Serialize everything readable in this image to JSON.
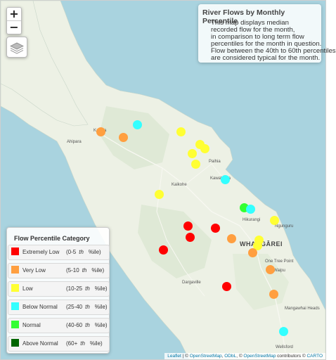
{
  "map": {
    "zoom_in_label": "+",
    "zoom_out_label": "−",
    "layers_icon": "layers-icon",
    "land_color": "#edf1e5",
    "sea_color": "#a9d3df"
  },
  "info_box": {
    "title": "River Flows by Monthly Percentile",
    "lines": [
      "This map displays median",
      "recorded flow for the month,",
      "in comparison to long term flow",
      "percentiles for the month in question.",
      "Flow between the 40th to 60th percentiles",
      "are considered typical for the month."
    ]
  },
  "legend": {
    "title": "Flow Percentile Category",
    "th": "th",
    "ile": "%ile)",
    "items": [
      {
        "label": "Extremely Low",
        "range": "(0-5",
        "color": "#ff0000"
      },
      {
        "label": "Very Low",
        "range": "(5-10",
        "color": "#ff9f40"
      },
      {
        "label": "Low",
        "range": "(10-25",
        "color": "#ffff33"
      },
      {
        "label": "Below Normal",
        "range": "(25-40",
        "color": "#33ffff"
      },
      {
        "label": "Normal",
        "range": "(40-60",
        "color": "#33ff33"
      },
      {
        "label": "Above Normal",
        "range": "(60+",
        "color": "#006600"
      }
    ]
  },
  "places": [
    "Kaitaia",
    "Ahipara",
    "Paihia",
    "Kawakawa",
    "Kaikohe",
    "Hikurangi",
    "Ngunguru",
    "WHANGĀREI",
    "One Tree Point",
    "Waipu",
    "Dargaville",
    "Mangawhai Heads",
    "Wellsford"
  ],
  "sites": [
    {
      "category": "Very Low",
      "color": "#ff9f40"
    },
    {
      "category": "Below Normal",
      "color": "#33ffff"
    },
    {
      "category": "Very Low",
      "color": "#ff9f40"
    },
    {
      "category": "Low",
      "color": "#ffff33"
    },
    {
      "category": "Low",
      "color": "#ffff33"
    },
    {
      "category": "Low",
      "color": "#ffff33"
    },
    {
      "category": "Low",
      "color": "#ffff33"
    },
    {
      "category": "Low",
      "color": "#ffff33"
    },
    {
      "category": "Below Normal",
      "color": "#33ffff"
    },
    {
      "category": "Low",
      "color": "#ffff33"
    },
    {
      "category": "Normal",
      "color": "#33ff33"
    },
    {
      "category": "Below Normal",
      "color": "#33ffff"
    },
    {
      "category": "Low",
      "color": "#ffff33"
    },
    {
      "category": "Extremely Low",
      "color": "#ff0000"
    },
    {
      "category": "Extremely Low",
      "color": "#ff0000"
    },
    {
      "category": "Extremely Low",
      "color": "#ff0000"
    },
    {
      "category": "Very Low",
      "color": "#ff9f40"
    },
    {
      "category": "Low",
      "color": "#ffff33"
    },
    {
      "category": "Low",
      "color": "#ffff33"
    },
    {
      "category": "Extremely Low",
      "color": "#ff0000"
    },
    {
      "category": "Very Low",
      "color": "#ff9f40"
    },
    {
      "category": "Very Low",
      "color": "#ff9f40"
    },
    {
      "category": "Extremely Low",
      "color": "#ff0000"
    },
    {
      "category": "Very Low",
      "color": "#ff9f40"
    },
    {
      "category": "Below Normal",
      "color": "#33ffff"
    }
  ],
  "attribution": {
    "leaflet": "Leaflet",
    "sep1": " | © ",
    "osm1": "OpenStreetMap",
    "sep2": ", ",
    "odbl": "ODbL",
    "sep3": ", © ",
    "osm2": "OpenStreetMap",
    "sep4": " contributors © ",
    "carto": "CARTO"
  }
}
